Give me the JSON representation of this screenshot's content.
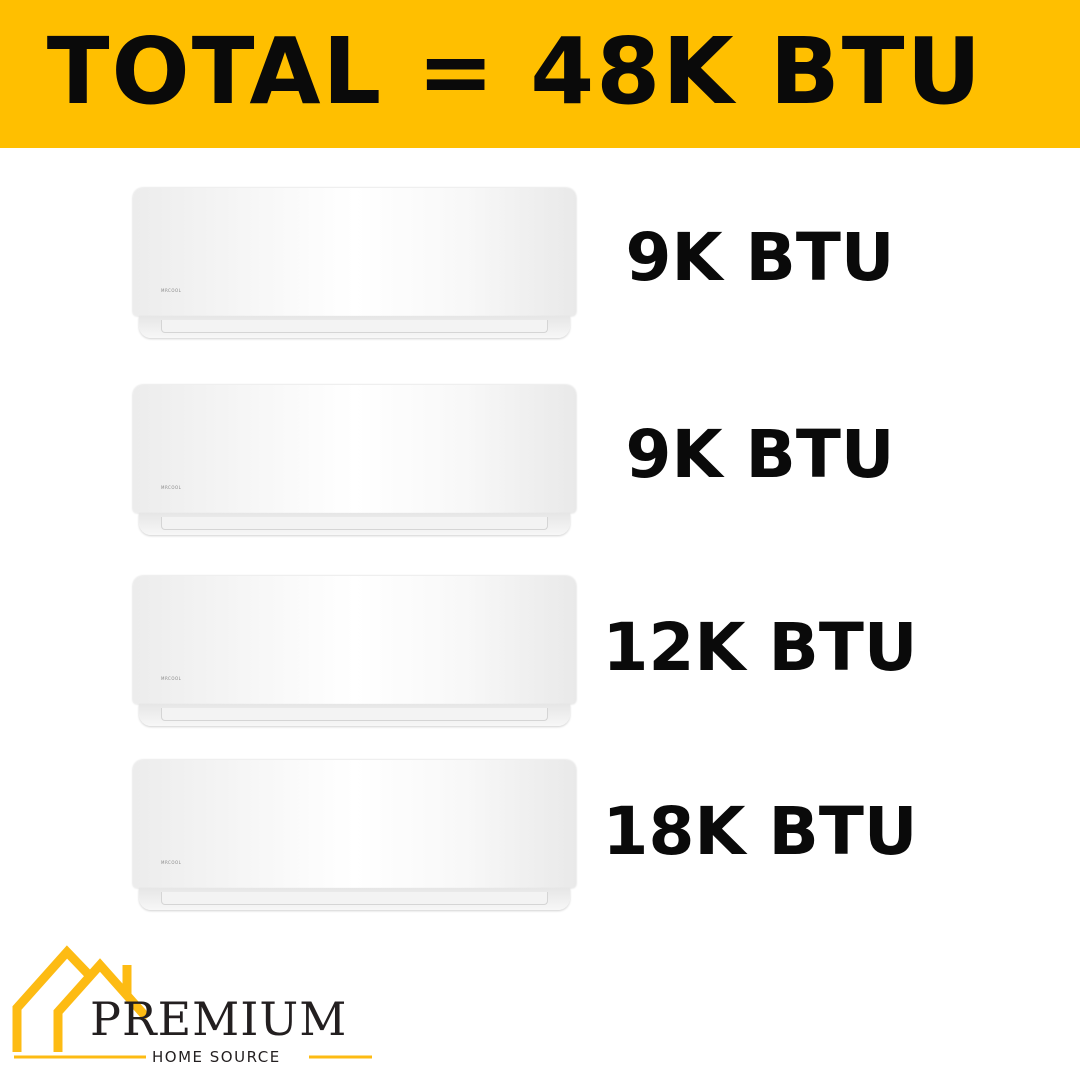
{
  "banner": {
    "title": "TOTAL = 48K BTU",
    "color": "#FFBF00"
  },
  "units": [
    {
      "label": "9K BTU",
      "brand": "MRCOOL"
    },
    {
      "label": "9K BTU",
      "brand": "MRCOOL"
    },
    {
      "label": "12K BTU",
      "brand": "MRCOOL"
    },
    {
      "label": "18K BTU",
      "brand": "MRCOOL"
    }
  ],
  "logo": {
    "name": "PREMIUM",
    "subtitle": "HOME SOURCE",
    "accent": "#FDBB13",
    "icon": "house-roof-icon"
  }
}
